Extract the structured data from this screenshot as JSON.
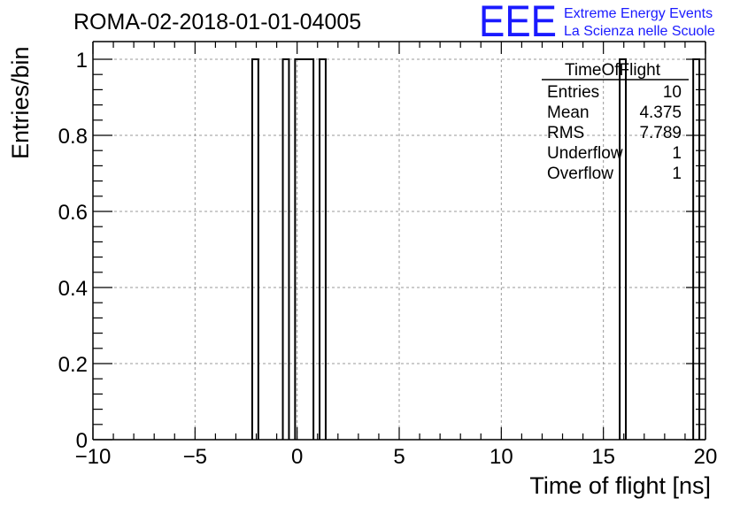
{
  "chart_data": {
    "type": "bar",
    "title": "ROMA-02-2018-01-01-04005",
    "xlabel": "Time of flight [ns]",
    "ylabel": "Entries/bin",
    "xlim": [
      -10,
      20
    ],
    "ylim": [
      0,
      1
    ],
    "x_ticks": [
      "−10",
      "−5",
      "0",
      "5",
      "10",
      "15",
      "20"
    ],
    "y_ticks": [
      "0",
      "0.2",
      "0.4",
      "0.6",
      "0.8",
      "1"
    ],
    "grid": true,
    "bins": [
      {
        "x0": -2.2,
        "x1": -1.9,
        "value": 1
      },
      {
        "x0": -0.7,
        "x1": -0.4,
        "value": 1
      },
      {
        "x0": -0.1,
        "x1": 0.8,
        "value": 1
      },
      {
        "x0": 1.1,
        "x1": 1.4,
        "value": 1
      },
      {
        "x0": 15.8,
        "x1": 16.1,
        "value": 1
      },
      {
        "x0": 19.4,
        "x1": 19.7,
        "value": 1
      }
    ],
    "stats_box": {
      "name": "TimeOfFlight",
      "rows": [
        {
          "label": "Entries",
          "value": "10"
        },
        {
          "label": "Mean",
          "value": "4.375"
        },
        {
          "label": "RMS",
          "value": "7.789"
        },
        {
          "label": "Underflow",
          "value": "1"
        },
        {
          "label": "Overflow",
          "value": "1"
        }
      ]
    }
  },
  "branding": {
    "logo": "EEE",
    "line1": "Extreme Energy Events",
    "line2": "La Scienza nelle Scuole",
    "color": "#1a1aff"
  }
}
